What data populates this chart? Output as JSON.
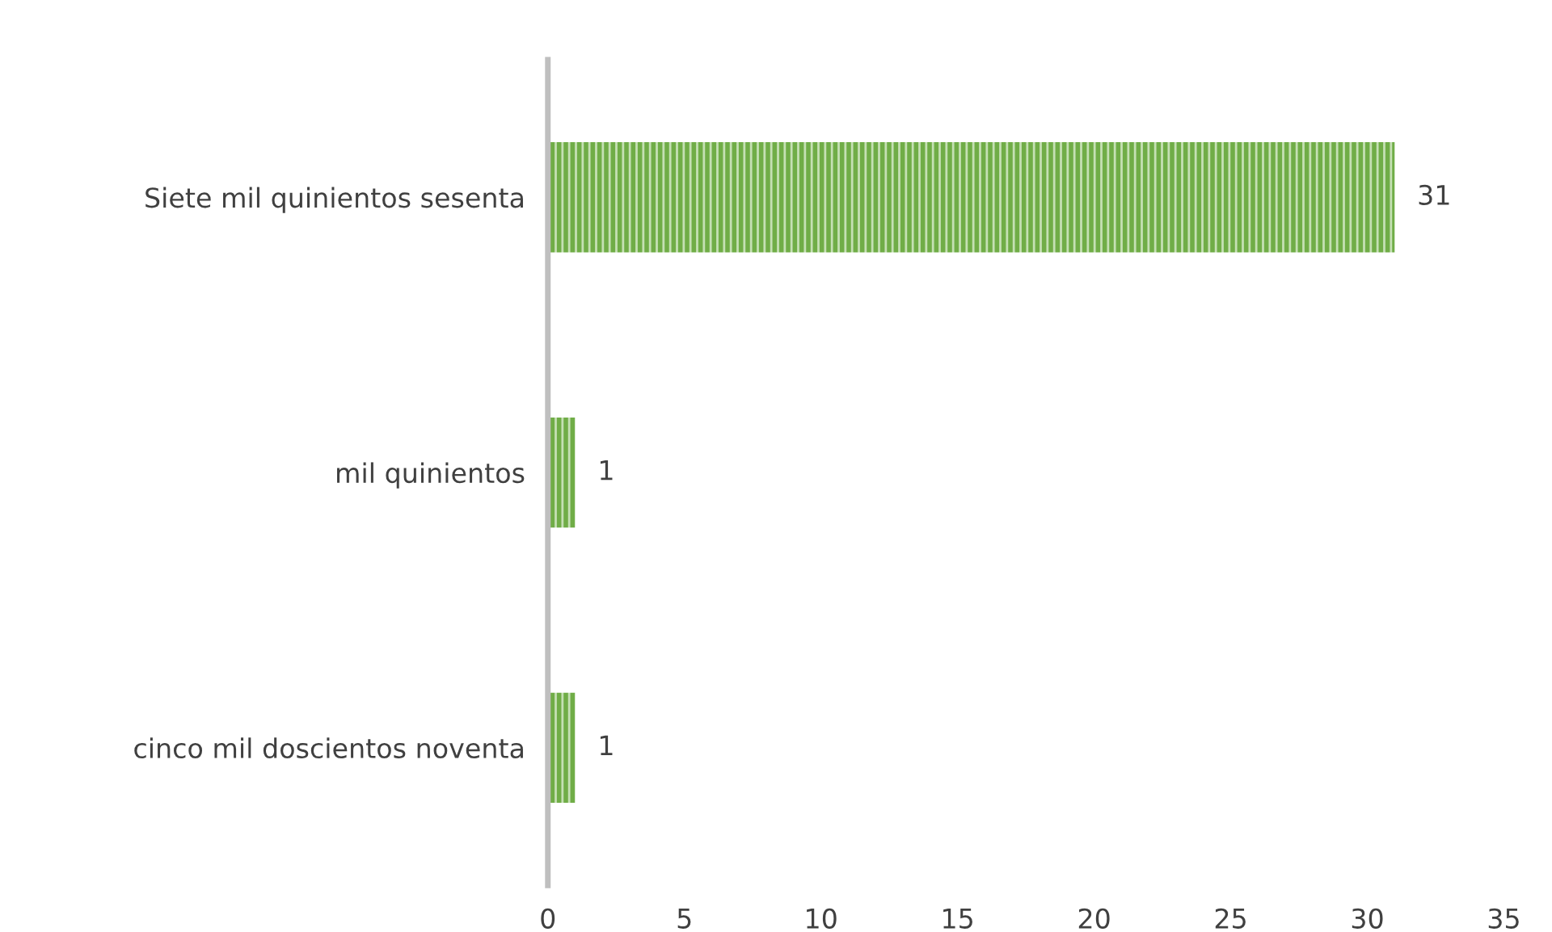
{
  "chart_data": {
    "type": "bar",
    "orientation": "horizontal",
    "categories": [
      "Siete mil quinientos sesenta",
      "mil quinientos",
      "cinco mil doscientos noventa"
    ],
    "values": [
      31,
      1,
      1
    ],
    "color": "#70ad47",
    "xlim": [
      0,
      35
    ],
    "xticks": [
      0,
      5,
      10,
      15,
      20,
      25,
      30,
      35
    ],
    "grid": false,
    "data_labels": true
  }
}
